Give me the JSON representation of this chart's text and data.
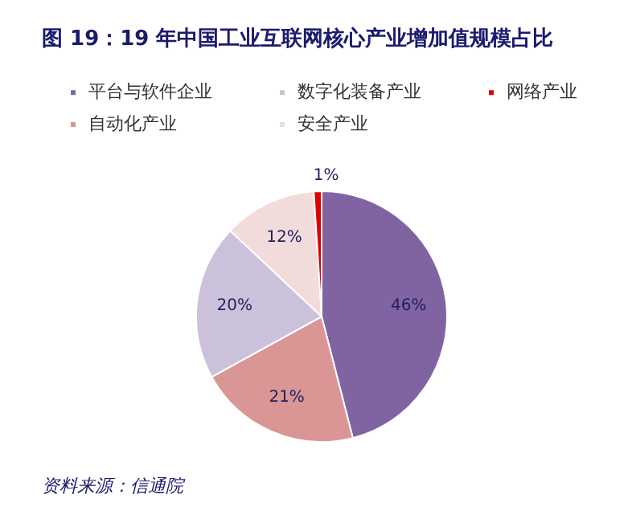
{
  "chart_data": {
    "type": "pie",
    "title": "图 19：19 年中国工业互联网核心产业增加值规模占比",
    "categories": [
      "平台与软件企业",
      "自动化产业",
      "数字化装备产业",
      "安全产业",
      "网络产业"
    ],
    "values": [
      46,
      21,
      20,
      12,
      1
    ],
    "colors": [
      "#8064a2",
      "#d99694",
      "#ccc1da",
      "#f2dcdb",
      "#e00000"
    ],
    "value_labels": [
      "46%",
      "21%",
      "20%",
      "12%",
      "1%"
    ],
    "legend": "top",
    "annotations": [
      "资料来源：信通院"
    ]
  }
}
